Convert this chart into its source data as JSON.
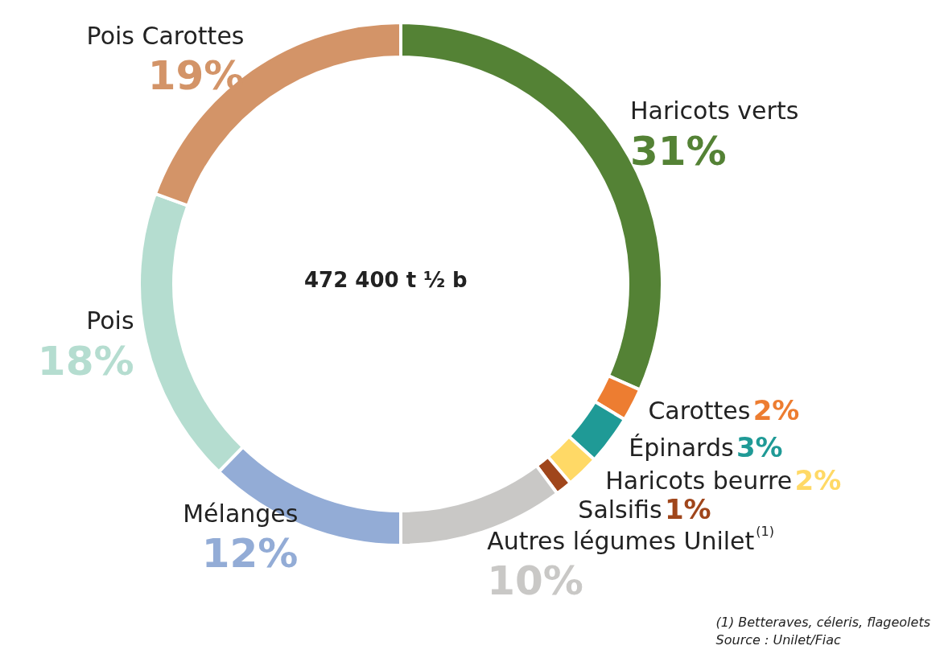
{
  "chart_data": {
    "type": "donut",
    "categories": [
      "Haricots verts",
      "Carottes",
      "Épinards",
      "Haricots beurre",
      "Salsifis",
      "Autres légumes Unilet$^{(1)}$",
      "Mélanges",
      "Pois",
      "Pois Carottes"
    ],
    "values": [
      31,
      2,
      3,
      2,
      1,
      10,
      12,
      18,
      19
    ],
    "value_labels": [
      "31%",
      "2%",
      "3%",
      "2%",
      "1%",
      "10%",
      "12%",
      "18%",
      "19%"
    ],
    "colors": [
      "#548235",
      "#ed7d31",
      "#1f9a96",
      "#ffd966",
      "#a0461b",
      "#c9c8c6",
      "#93acd6",
      "#b5ddd0",
      "#d39468"
    ],
    "annotations": [
      "472 400 t ½ b",
      "(1) Betteraves, céleris, flageolets",
      "Source : Unilet/Fiac"
    ],
    "legend": false
  }
}
